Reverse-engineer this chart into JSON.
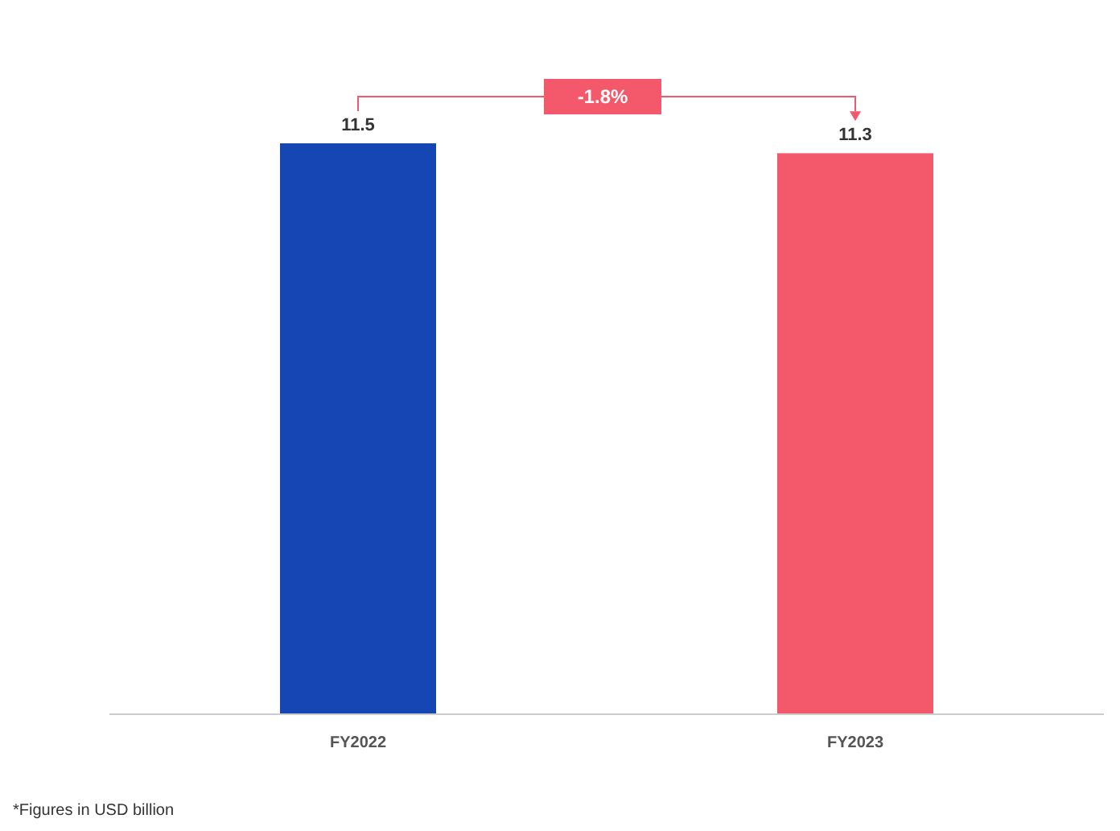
{
  "chart_data": {
    "type": "bar",
    "categories": [
      "FY2022",
      "FY2023"
    ],
    "values": [
      11.5,
      11.3
    ],
    "colors": [
      "#1546b4",
      "#f4586b"
    ],
    "data_labels": true,
    "annotations": [
      "-1.8%",
      "*Figures in USD billion"
    ]
  }
}
